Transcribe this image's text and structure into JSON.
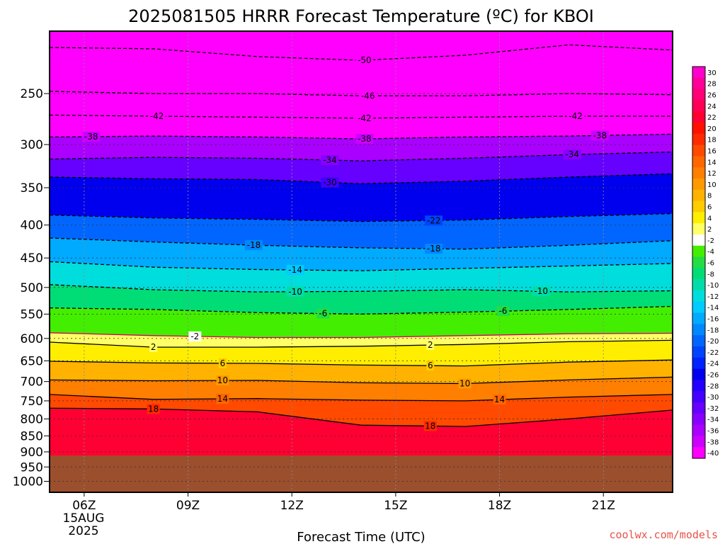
{
  "chart_data": {
    "type": "heatmap",
    "title": "2025081505 HRRR Forecast Temperature (ºC) for KBOI",
    "xlabel": "Forecast Time (UTC)",
    "ylabel": "",
    "x_ticks": [
      "06Z",
      "09Z",
      "12Z",
      "15Z",
      "18Z",
      "21Z"
    ],
    "x_date_line1": "15AUG",
    "x_date_line2": "2025",
    "x_range_hours": [
      5,
      23
    ],
    "y_ticks": [
      250,
      300,
      350,
      400,
      450,
      500,
      550,
      600,
      650,
      700,
      750,
      800,
      850,
      900,
      950,
      1000
    ],
    "y_range_hpa": [
      200,
      1040
    ],
    "y_scale": "log-pressure",
    "ground_level_hpa": 912,
    "ground_color": "#9b4f2d",
    "watermark": "coolwx.com/models",
    "colorbar": {
      "labels": [
        "30",
        "28",
        "26",
        "24",
        "22",
        "20",
        "18",
        "16",
        "14",
        "12",
        "10",
        "8",
        "6",
        "4",
        "2",
        "-2",
        "-4",
        "-6",
        "-8",
        "-10",
        "-12",
        "-14",
        "-16",
        "-18",
        "-20",
        "-22",
        "-24",
        "-26",
        "-28",
        "-30",
        "-32",
        "-34",
        "-36",
        "-38",
        "-40"
      ],
      "colors": [
        "#ff00cc",
        "#ff0099",
        "#ff0077",
        "#ff0055",
        "#ff0033",
        "#ff1100",
        "#ff2b00",
        "#ff4a00",
        "#ff6600",
        "#ff7f00",
        "#ff9900",
        "#ffb300",
        "#ffcc00",
        "#ffee00",
        "#ffff66",
        "#ffffff",
        "#44ee00",
        "#22dd44",
        "#00dd77",
        "#00ddaa",
        "#00dddd",
        "#00ccff",
        "#00aaff",
        "#0088ff",
        "#0066ff",
        "#0044ff",
        "#0022ff",
        "#0000ee",
        "#2200ff",
        "#4400ff",
        "#6600ff",
        "#8800ff",
        "#aa00ff",
        "#cc00ff",
        "#ff00ff"
      ]
    },
    "isotherms": [
      {
        "value": -50,
        "dashed": true,
        "x": [
          5,
          8,
          11,
          14,
          17,
          20,
          23
        ],
        "p": [
          212,
          213,
          219,
          222,
          218,
          210,
          214
        ],
        "labels": [
          {
            "x": 14.1,
            "text": "-50"
          }
        ]
      },
      {
        "value": -46,
        "dashed": true,
        "x": [
          5,
          8,
          11,
          14,
          17,
          20,
          23
        ],
        "p": [
          248,
          250,
          250,
          252,
          252,
          250,
          251
        ],
        "labels": [
          {
            "x": 14.2,
            "text": "-46"
          }
        ]
      },
      {
        "value": -42,
        "dashed": true,
        "x": [
          5,
          8,
          11,
          14,
          17,
          20,
          23
        ],
        "p": [
          270,
          271,
          272,
          273,
          272,
          271,
          271
        ],
        "labels": [
          {
            "x": 8.1,
            "text": "-42"
          },
          {
            "x": 14.1,
            "text": "-42"
          },
          {
            "x": 20.2,
            "text": "-42"
          }
        ]
      },
      {
        "value": -38,
        "dashed": true,
        "x": [
          5,
          8,
          11,
          14,
          17,
          20,
          23
        ],
        "p": [
          292,
          291,
          292,
          294,
          292,
          291,
          289
        ],
        "labels": [
          {
            "x": 6.2,
            "text": "-38"
          },
          {
            "x": 14.1,
            "text": "-38"
          },
          {
            "x": 20.9,
            "text": "-38"
          }
        ]
      },
      {
        "value": -34,
        "dashed": true,
        "x": [
          5,
          8,
          11,
          14,
          17,
          20,
          23
        ],
        "p": [
          316,
          314,
          315,
          318,
          315,
          311,
          308
        ],
        "labels": [
          {
            "x": 13.1,
            "text": "-34"
          },
          {
            "x": 20.1,
            "text": "-34"
          }
        ]
      },
      {
        "value": -30,
        "dashed": true,
        "x": [
          5,
          8,
          11,
          14,
          17,
          20,
          23
        ],
        "p": [
          337,
          339,
          340,
          345,
          342,
          337,
          333
        ],
        "labels": [
          {
            "x": 13.1,
            "text": "-30"
          }
        ]
      },
      {
        "value": -22,
        "dashed": true,
        "x": [
          5,
          8,
          11,
          14,
          17,
          20,
          23
        ],
        "p": [
          386,
          390,
          392,
          395,
          393,
          388,
          384
        ],
        "labels": [
          {
            "x": 16.1,
            "text": "-22"
          }
        ]
      },
      {
        "value": -18,
        "dashed": true,
        "x": [
          5,
          8,
          11,
          14,
          17,
          20,
          23
        ],
        "p": [
          419,
          425,
          430,
          434,
          436,
          430,
          423
        ],
        "labels": [
          {
            "x": 10.9,
            "text": "-18"
          },
          {
            "x": 16.1,
            "text": "-18"
          }
        ]
      },
      {
        "value": -14,
        "dashed": true,
        "x": [
          5,
          8,
          11,
          14,
          17,
          20,
          23
        ],
        "p": [
          456,
          465,
          469,
          471,
          467,
          463,
          459
        ],
        "labels": [
          {
            "x": 12.1,
            "text": "-14"
          }
        ]
      },
      {
        "value": -10,
        "dashed": true,
        "x": [
          5,
          8,
          11,
          14,
          17,
          20,
          23
        ],
        "p": [
          495,
          504,
          508,
          507,
          504,
          508,
          506
        ],
        "labels": [
          {
            "x": 12.1,
            "text": "-10"
          },
          {
            "x": 19.2,
            "text": "-10"
          }
        ]
      },
      {
        "value": -6,
        "dashed": true,
        "x": [
          5,
          8,
          11,
          14,
          17,
          20,
          23
        ],
        "p": [
          538,
          541,
          547,
          550,
          546,
          541,
          535
        ],
        "labels": [
          {
            "x": 12.9,
            "text": "-6"
          },
          {
            "x": 18.1,
            "text": "-6"
          }
        ]
      },
      {
        "value": -2,
        "dashed": false,
        "color": "#cc0066",
        "x": [
          5,
          8,
          11,
          14,
          17,
          20,
          23
        ],
        "p": [
          588,
          594,
          598,
          598,
          594,
          590,
          589
        ],
        "labels": [
          {
            "x": 9.2,
            "text": "-2"
          }
        ]
      },
      {
        "value": 2,
        "dashed": false,
        "x": [
          5,
          8,
          11,
          14,
          17,
          20,
          23
        ],
        "p": [
          608,
          619,
          619,
          617,
          613,
          607,
          604
        ],
        "labels": [
          {
            "x": 8.0,
            "text": "2"
          },
          {
            "x": 16.0,
            "text": "2"
          }
        ]
      },
      {
        "value": 6,
        "dashed": false,
        "x": [
          5,
          8,
          11,
          14,
          17,
          20,
          23
        ],
        "p": [
          651,
          655,
          656,
          660,
          662,
          653,
          648
        ],
        "labels": [
          {
            "x": 10.0,
            "text": "6"
          },
          {
            "x": 16.0,
            "text": "6"
          }
        ]
      },
      {
        "value": 10,
        "dashed": false,
        "x": [
          5,
          8,
          11,
          14,
          17,
          20,
          23
        ],
        "p": [
          696,
          698,
          697,
          703,
          705,
          696,
          689
        ],
        "labels": [
          {
            "x": 10.0,
            "text": "10"
          },
          {
            "x": 17.0,
            "text": "10"
          }
        ]
      },
      {
        "value": 14,
        "dashed": false,
        "x": [
          5,
          8,
          11,
          14,
          17,
          20,
          23
        ],
        "p": [
          733,
          746,
          744,
          748,
          750,
          740,
          733
        ],
        "labels": [
          {
            "x": 10.0,
            "text": "14"
          },
          {
            "x": 18.0,
            "text": "14"
          }
        ]
      },
      {
        "value": 18,
        "dashed": false,
        "x": [
          5,
          8,
          11,
          14,
          17,
          20,
          23
        ],
        "p": [
          770,
          772,
          780,
          818,
          822,
          800,
          775
        ],
        "labels": [
          {
            "x": 8.0,
            "text": "18"
          },
          {
            "x": 16.0,
            "text": "18"
          }
        ]
      }
    ]
  }
}
